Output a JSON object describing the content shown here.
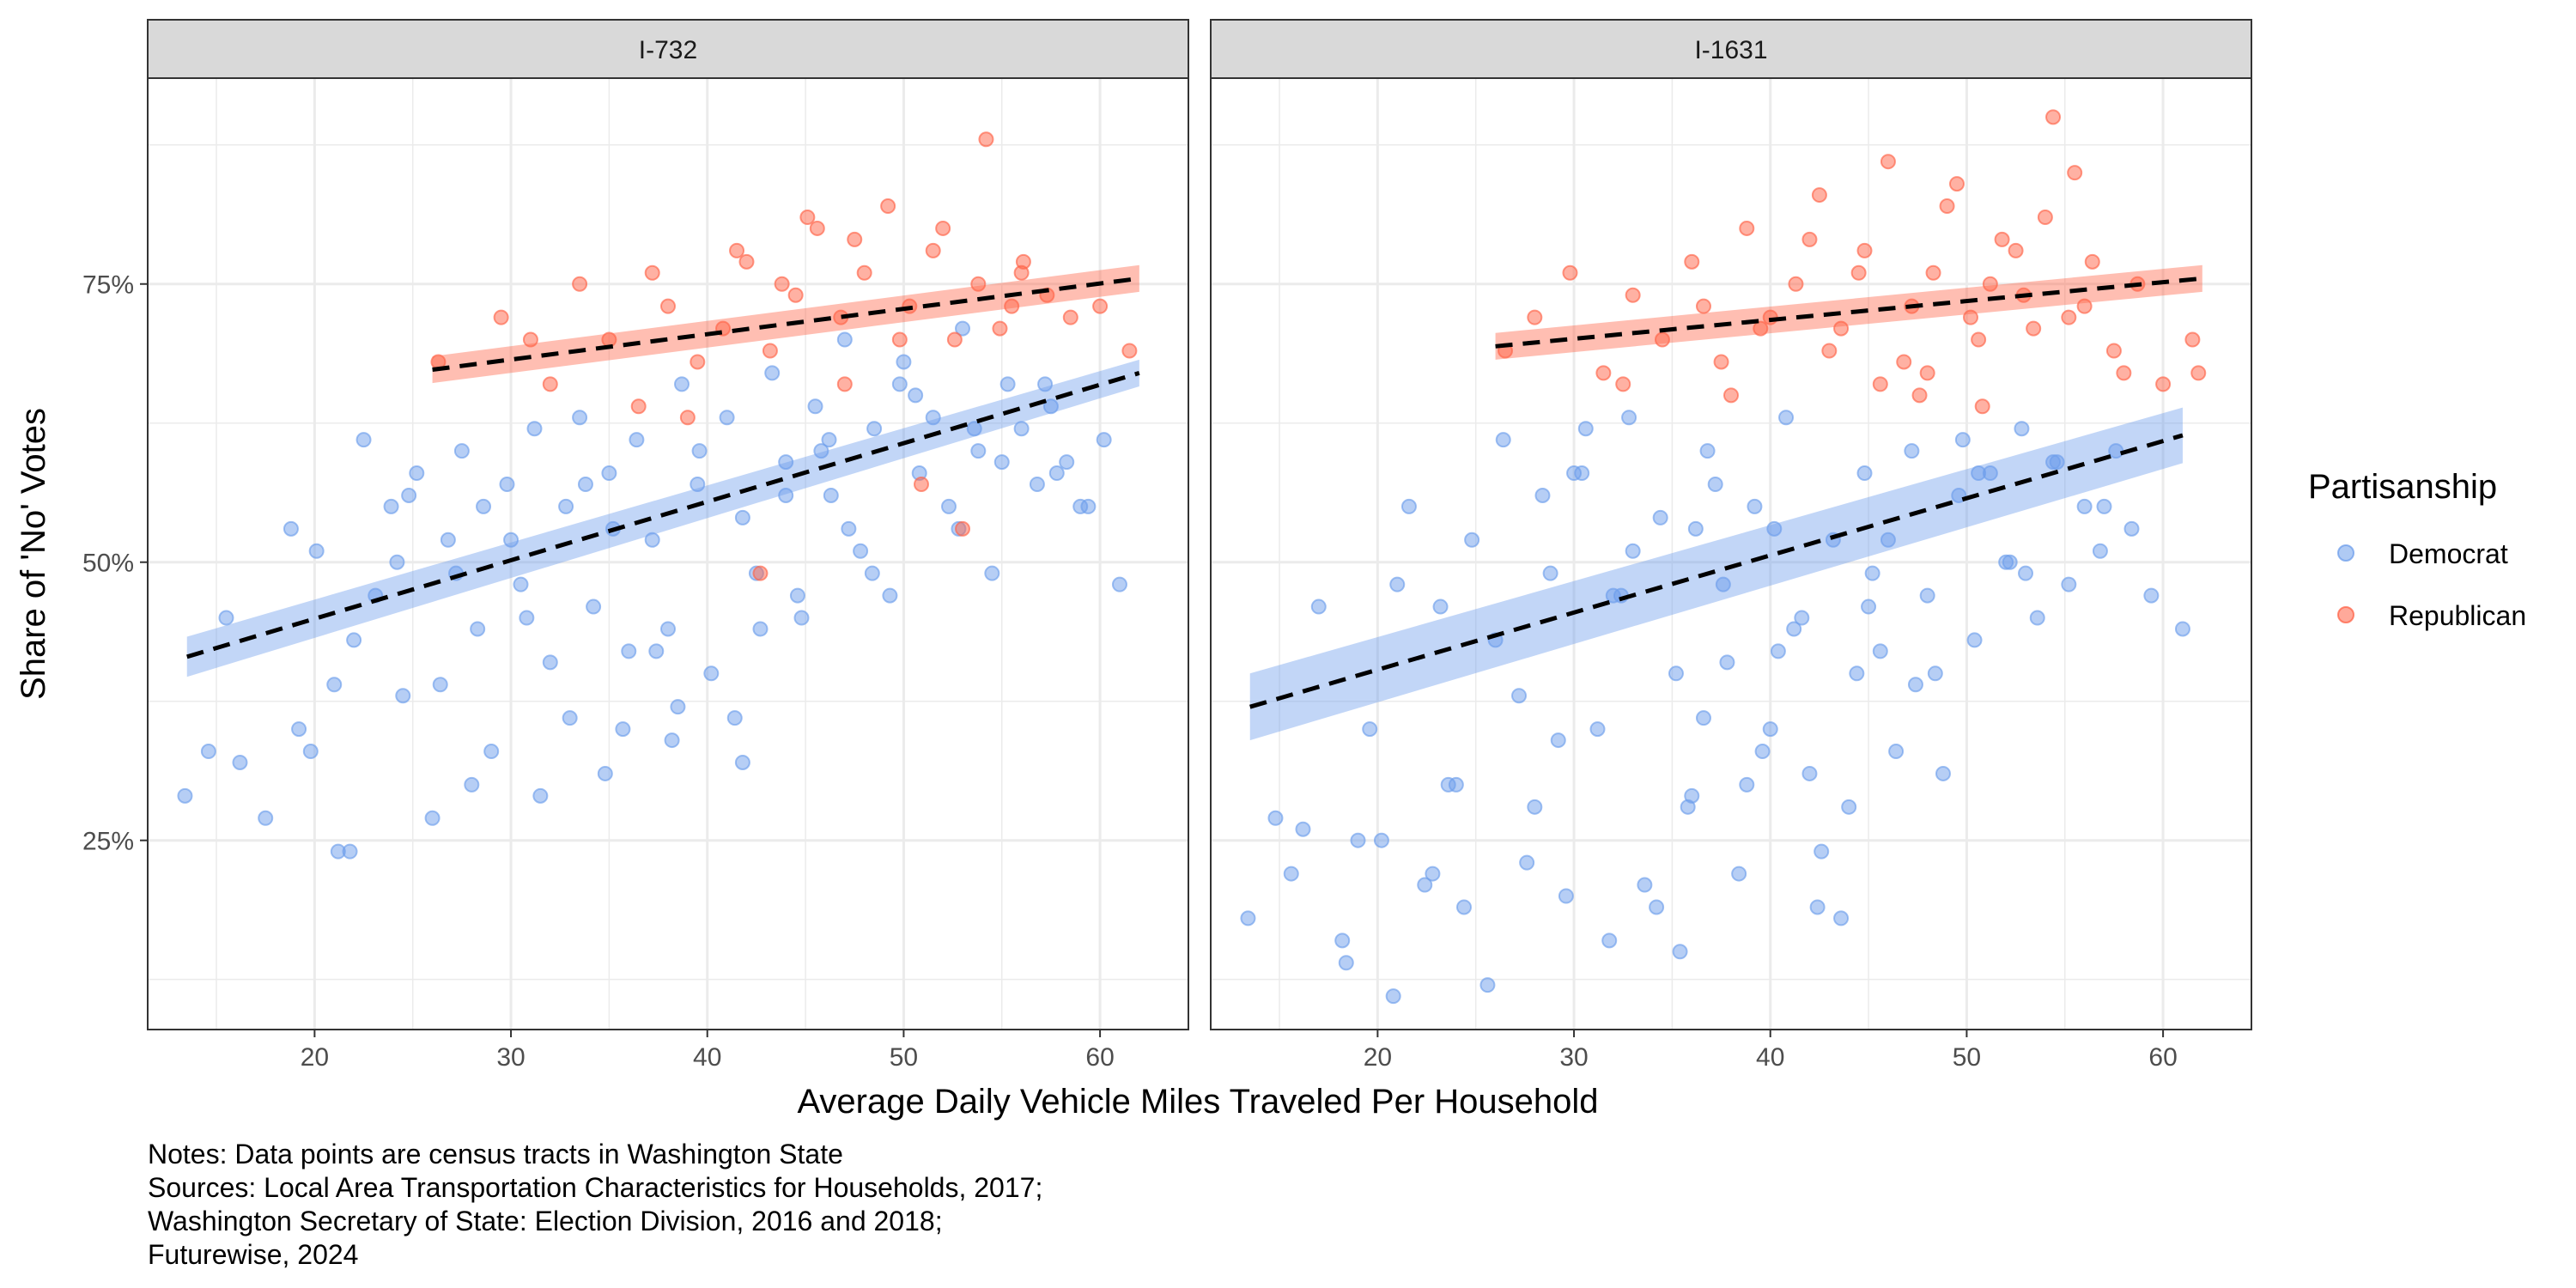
{
  "chart_data": {
    "type": "scatter",
    "xlabel": "Average Daily Vehicle Miles Traveled Per Household",
    "ylabel": "Share of 'No' Votes",
    "xlim": [
      11.5,
      64.5
    ],
    "ylim": [
      0.08,
      0.935
    ],
    "x_ticks": [
      20,
      30,
      40,
      50,
      60
    ],
    "y_ticks": [
      0.25,
      0.5,
      0.75
    ],
    "y_tick_labels": [
      "25%",
      "50%",
      "75%"
    ],
    "grid": true,
    "legend": {
      "title": "Partisanship",
      "position": "right",
      "entries": [
        {
          "name": "Democrat",
          "color": "#6D9EEB"
        },
        {
          "name": "Republican",
          "color": "#FF6347"
        }
      ]
    },
    "notes": [
      "Notes: Data points are census tracts in Washington State",
      "Sources: Local Area Transportation Characteristics for Households, 2017;",
      "Washington Secretary of State: Election Division, 2016 and 2018;",
      "Futurewise, 2024"
    ],
    "colors": {
      "democrat": "#6D9EEB",
      "republican": "#FF6347",
      "strip": "#D9D9D9",
      "grid": "#EBEBEB",
      "trend": "#000000"
    },
    "panels": [
      {
        "strip": "I-732",
        "trend_lines": [
          {
            "series": "Republican",
            "x": [
              26,
              62
            ],
            "y": [
              0.673,
              0.755
            ],
            "band_halfwidth": [
              0.012,
              0.012
            ]
          },
          {
            "series": "Democrat",
            "x": [
              13.5,
              62
            ],
            "y": [
              0.415,
              0.67
            ],
            "band_halfwidth": [
              0.018,
              0.012
            ]
          }
        ],
        "series": [
          {
            "name": "Democrat",
            "x": [
              13.4,
              15.5,
              16.2,
              18.8,
              19.2,
              20.1,
              21.0,
              21.8,
              22.5,
              23.1,
              23.9,
              24.5,
              25.2,
              26.0,
              26.8,
              27.5,
              28.3,
              29.0,
              29.8,
              30.5,
              31.2,
              32.0,
              32.8,
              33.5,
              34.2,
              35.0,
              35.7,
              36.4,
              37.2,
              38.0,
              38.7,
              39.5,
              40.2,
              41.0,
              41.8,
              42.5,
              43.3,
              44.0,
              44.8,
              45.5,
              46.3,
              47.0,
              47.8,
              48.5,
              49.3,
              50.0,
              50.8,
              51.5,
              52.3,
              53.0,
              53.8,
              54.5,
              55.3,
              56.0,
              56.8,
              57.5,
              58.3,
              59.0,
              60.2,
              61.0,
              17.5,
              19.8,
              22.0,
              24.2,
              26.4,
              28.6,
              30.8,
              33.0,
              35.2,
              37.4,
              39.6,
              41.8,
              44.0,
              46.2,
              48.4,
              50.6,
              52.8,
              55.0,
              57.2,
              59.4,
              14.6,
              21.2,
              28.0,
              31.5,
              34.8,
              38.2,
              41.4,
              44.6,
              47.2,
              36.0,
              38.5,
              42.7,
              30.0,
              33.8,
              45.8,
              49.8,
              53.6,
              57.8,
              24.8,
              27.2
            ],
            "y": [
              0.29,
              0.45,
              0.32,
              0.53,
              0.35,
              0.51,
              0.39,
              0.24,
              0.61,
              0.47,
              0.55,
              0.38,
              0.58,
              0.27,
              0.52,
              0.6,
              0.44,
              0.33,
              0.57,
              0.48,
              0.62,
              0.41,
              0.55,
              0.63,
              0.46,
              0.58,
              0.35,
              0.61,
              0.52,
              0.44,
              0.66,
              0.57,
              0.4,
              0.63,
              0.54,
              0.49,
              0.67,
              0.59,
              0.45,
              0.64,
              0.56,
              0.7,
              0.51,
              0.62,
              0.47,
              0.68,
              0.58,
              0.63,
              0.55,
              0.71,
              0.6,
              0.49,
              0.66,
              0.62,
              0.57,
              0.64,
              0.59,
              0.55,
              0.61,
              0.48,
              0.27,
              0.33,
              0.43,
              0.5,
              0.39,
              0.55,
              0.45,
              0.36,
              0.53,
              0.42,
              0.6,
              0.32,
              0.56,
              0.61,
              0.49,
              0.65,
              0.53,
              0.59,
              0.66,
              0.55,
              0.33,
              0.24,
              0.3,
              0.29,
              0.31,
              0.34,
              0.36,
              0.47,
              0.53,
              0.42,
              0.37,
              0.44,
              0.52,
              0.57,
              0.6,
              0.66,
              0.62,
              0.58,
              0.56,
              0.49
            ]
          },
          {
            "name": "Republican",
            "x": [
              26.3,
              29.5,
              32.0,
              33.5,
              35.0,
              36.5,
              38.0,
              39.5,
              40.8,
              42.0,
              43.2,
              44.5,
              45.6,
              46.8,
              48.0,
              49.2,
              50.3,
              51.5,
              52.6,
              53.8,
              54.9,
              56.1,
              57.3,
              58.5,
              60.0,
              61.5,
              37.2,
              41.5,
              45.1,
              47.5,
              49.8,
              52.0,
              54.2,
              56.0,
              43.8,
              50.9,
              47.0,
              53.0,
              55.5,
              42.7,
              31.0,
              39.0
            ],
            "y": [
              0.68,
              0.72,
              0.66,
              0.75,
              0.7,
              0.64,
              0.73,
              0.68,
              0.71,
              0.77,
              0.69,
              0.74,
              0.8,
              0.72,
              0.76,
              0.82,
              0.73,
              0.78,
              0.7,
              0.75,
              0.71,
              0.77,
              0.74,
              0.72,
              0.73,
              0.69,
              0.76,
              0.78,
              0.81,
              0.79,
              0.7,
              0.8,
              0.88,
              0.76,
              0.75,
              0.57,
              0.66,
              0.53,
              0.73,
              0.49,
              0.7,
              0.63
            ]
          }
        ]
      },
      {
        "strip": "I-1631",
        "trend_lines": [
          {
            "series": "Republican",
            "x": [
              26,
              62
            ],
            "y": [
              0.694,
              0.755
            ],
            "band_halfwidth": [
              0.012,
              0.012
            ]
          },
          {
            "series": "Democrat",
            "x": [
              13.5,
              61
            ],
            "y": [
              0.37,
              0.614
            ],
            "band_halfwidth": [
              0.03,
              0.025
            ]
          }
        ],
        "series": [
          {
            "name": "Democrat",
            "x": [
              13.4,
              14.8,
              15.6,
              17.0,
              18.2,
              19.0,
              19.6,
              20.8,
              21.6,
              22.4,
              23.2,
              24.0,
              24.8,
              25.6,
              26.4,
              27.2,
              28.0,
              28.8,
              29.6,
              30.4,
              31.2,
              32.0,
              32.8,
              33.6,
              34.4,
              35.2,
              36.0,
              36.8,
              37.6,
              38.4,
              39.2,
              40.0,
              40.8,
              41.6,
              42.4,
              43.2,
              44.0,
              44.8,
              45.6,
              46.4,
              47.2,
              48.0,
              48.8,
              49.6,
              50.4,
              51.2,
              52.0,
              52.8,
              53.6,
              54.4,
              55.2,
              56.0,
              56.8,
              57.6,
              58.4,
              59.4,
              61.0,
              16.2,
              21.0,
              23.6,
              26.0,
              28.4,
              30.6,
              33.0,
              35.4,
              37.8,
              40.2,
              42.6,
              45.0,
              47.4,
              49.8,
              52.2,
              54.6,
              57.0,
              20.2,
              24.4,
              29.2,
              34.2,
              38.8,
              43.6,
              48.4,
              53.0,
              31.8,
              36.6,
              41.2,
              46.0,
              50.6,
              35.8,
              39.6,
              27.6,
              18.4,
              22.8,
              32.4,
              37.2,
              42.0,
              44.4,
              30.0,
              36.2,
              40.4,
              45.2
            ],
            "y": [
              0.18,
              0.27,
              0.22,
              0.46,
              0.16,
              0.25,
              0.35,
              0.11,
              0.55,
              0.21,
              0.46,
              0.3,
              0.52,
              0.12,
              0.61,
              0.38,
              0.28,
              0.49,
              0.2,
              0.58,
              0.35,
              0.47,
              0.63,
              0.21,
              0.54,
              0.4,
              0.29,
              0.6,
              0.48,
              0.22,
              0.55,
              0.35,
              0.63,
              0.45,
              0.19,
              0.52,
              0.28,
              0.58,
              0.42,
              0.33,
              0.6,
              0.47,
              0.31,
              0.56,
              0.43,
              0.58,
              0.5,
              0.62,
              0.45,
              0.59,
              0.48,
              0.55,
              0.51,
              0.6,
              0.53,
              0.47,
              0.44,
              0.26,
              0.48,
              0.3,
              0.43,
              0.56,
              0.62,
              0.51,
              0.15,
              0.41,
              0.53,
              0.24,
              0.46,
              0.39,
              0.61,
              0.5,
              0.59,
              0.55,
              0.25,
              0.19,
              0.34,
              0.19,
              0.3,
              0.18,
              0.4,
              0.49,
              0.16,
              0.36,
              0.44,
              0.52,
              0.58,
              0.28,
              0.33,
              0.23,
              0.14,
              0.22,
              0.47,
              0.57,
              0.31,
              0.4,
              0.58,
              0.53,
              0.42,
              0.49
            ]
          },
          {
            "name": "Republican",
            "x": [
              26.5,
              28.0,
              29.8,
              31.5,
              33.0,
              34.5,
              36.0,
              37.5,
              38.8,
              40.0,
              41.3,
              42.5,
              43.6,
              44.8,
              46.0,
              47.2,
              48.3,
              49.5,
              50.6,
              51.8,
              52.9,
              54.0,
              55.2,
              56.4,
              57.5,
              58.7,
              60.0,
              61.5,
              36.6,
              39.5,
              42.0,
              44.5,
              46.8,
              49.0,
              51.2,
              53.4,
              55.5,
              48.0,
              50.2,
              45.6,
              52.5,
              54.4,
              32.5,
              38.0,
              43.0,
              47.6,
              50.8,
              56.0,
              58.0,
              61.8
            ],
            "y": [
              0.69,
              0.72,
              0.76,
              0.67,
              0.74,
              0.7,
              0.77,
              0.68,
              0.8,
              0.72,
              0.75,
              0.83,
              0.71,
              0.78,
              0.86,
              0.73,
              0.76,
              0.84,
              0.7,
              0.79,
              0.74,
              0.81,
              0.72,
              0.77,
              0.69,
              0.75,
              0.66,
              0.7,
              0.73,
              0.71,
              0.79,
              0.76,
              0.68,
              0.82,
              0.75,
              0.71,
              0.85,
              0.67,
              0.72,
              0.66,
              0.78,
              0.9,
              0.66,
              0.65,
              0.69,
              0.65,
              0.64,
              0.73,
              0.67,
              0.67
            ]
          }
        ]
      }
    ]
  }
}
